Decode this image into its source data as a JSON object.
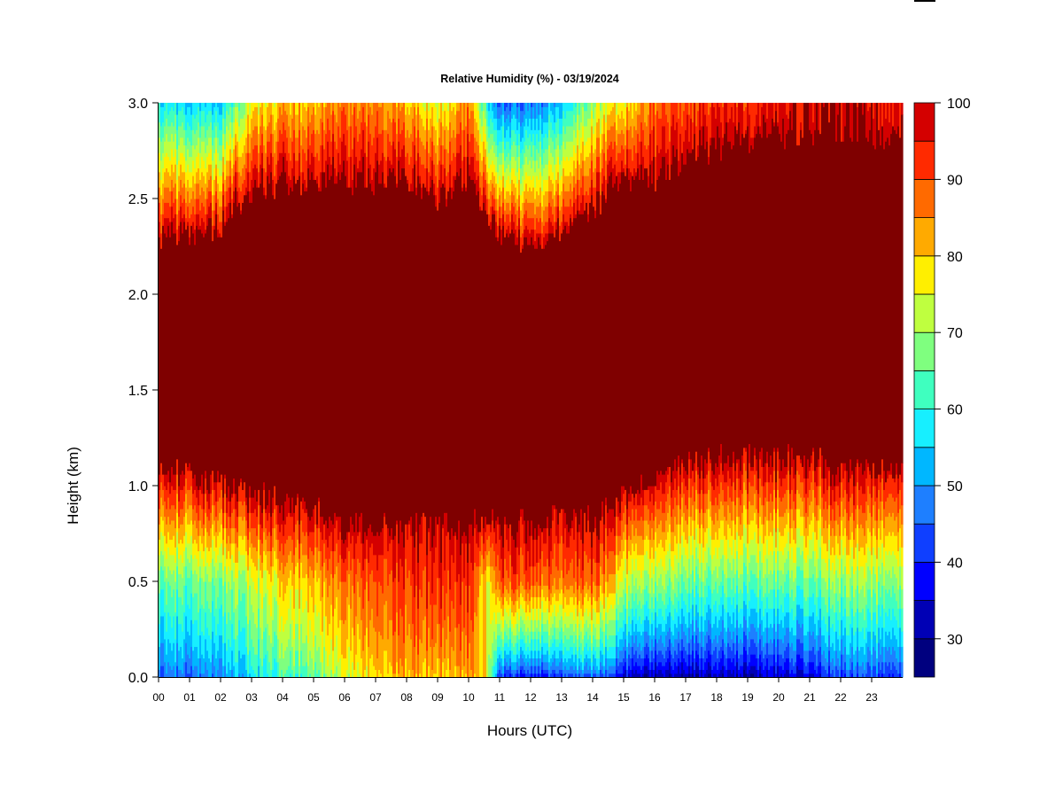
{
  "chart_data": {
    "type": "heatmap",
    "title": "Relative Humidity (%) - 03/19/2024",
    "xlabel": "Hours (UTC)",
    "ylabel": "Height (km)",
    "xlim": [
      0,
      24
    ],
    "ylim": [
      0,
      3.0
    ],
    "x_ticks": [
      "00",
      "01",
      "02",
      "03",
      "04",
      "05",
      "06",
      "07",
      "08",
      "09",
      "10",
      "11",
      "12",
      "13",
      "14",
      "15",
      "16",
      "17",
      "18",
      "19",
      "20",
      "21",
      "22",
      "23"
    ],
    "y_ticks": [
      "0.0",
      "0.5",
      "1.0",
      "1.5",
      "2.0",
      "2.5",
      "3.0"
    ],
    "colorbar": {
      "levels": [
        25,
        30,
        35,
        40,
        45,
        50,
        55,
        60,
        65,
        70,
        75,
        80,
        85,
        90,
        95,
        100
      ],
      "tick_labels": [
        "30",
        "40",
        "50",
        "60",
        "70",
        "80",
        "90",
        "100"
      ],
      "colors": [
        "#00007f",
        "#0000b5",
        "#0000ff",
        "#0f3fff",
        "#1e7fff",
        "#00b7ff",
        "#17efff",
        "#3fffbf",
        "#7fff7f",
        "#bfff3f",
        "#ffef00",
        "#ffaa00",
        "#ff6a00",
        "#ff2a00",
        "#d40000",
        "#7f0000"
      ]
    },
    "profile": {
      "hours": [
        0,
        1,
        2,
        3,
        4,
        5,
        6,
        7,
        8,
        9,
        10,
        10.6,
        11,
        12,
        13,
        14,
        15,
        16,
        17,
        18,
        19,
        20,
        21,
        22,
        23,
        24
      ],
      "saturated_layer_bottom_km": [
        1.08,
        1.08,
        1.0,
        0.97,
        0.93,
        0.88,
        0.82,
        0.78,
        0.8,
        0.8,
        0.8,
        0.82,
        0.8,
        0.82,
        0.84,
        0.82,
        0.95,
        1.05,
        1.12,
        1.15,
        1.15,
        1.15,
        1.15,
        1.1,
        1.08,
        1.08
      ],
      "saturated_layer_top_km": [
        2.3,
        2.32,
        2.35,
        2.55,
        2.58,
        2.58,
        2.58,
        2.58,
        2.6,
        2.5,
        2.6,
        2.45,
        2.3,
        2.25,
        2.35,
        2.45,
        2.6,
        2.6,
        2.7,
        2.75,
        2.78,
        2.82,
        2.82,
        2.85,
        2.82,
        2.82
      ],
      "surface_rh_pct": [
        45,
        45,
        48,
        55,
        60,
        65,
        72,
        78,
        82,
        80,
        82,
        78,
        40,
        35,
        42,
        45,
        35,
        30,
        30,
        30,
        30,
        32,
        35,
        40,
        42,
        42
      ],
      "mid_0_5km_rh_pct": [
        65,
        66,
        68,
        72,
        78,
        82,
        86,
        90,
        92,
        94,
        93,
        78,
        90,
        88,
        88,
        90,
        74,
        70,
        66,
        64,
        65,
        65,
        66,
        68,
        70,
        70
      ],
      "top_3km_rh_pct": [
        58,
        55,
        55,
        75,
        80,
        82,
        85,
        85,
        82,
        75,
        85,
        60,
        45,
        45,
        55,
        70,
        78,
        88,
        90,
        92,
        93,
        95,
        98,
        98,
        98,
        98
      ]
    }
  }
}
